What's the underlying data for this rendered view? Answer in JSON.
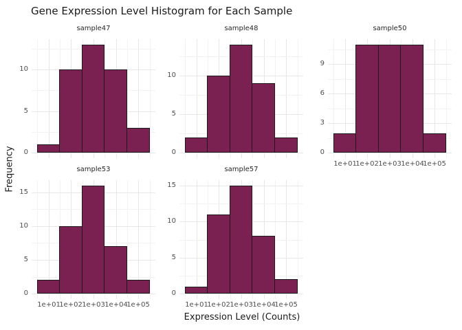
{
  "figure": {
    "title": "Gene Expression Level Histogram for Each Sample",
    "x_axis_title": "Expression Level (Counts)",
    "y_axis_title": "Frequency"
  },
  "colors": {
    "bar_fill": "#7B2151",
    "bar_edge": "#1A1A1A",
    "grid_major": "#E7E7E7",
    "grid_minor": "#F2F2F2",
    "axis_text": "#4D4D4D",
    "strip_text": "#262626",
    "background": "#FFFFFF"
  },
  "chart_data": {
    "type": "bar",
    "subtype": "faceted-histogram",
    "title": "Gene Expression Level Histogram for Each Sample",
    "xlabel": "Expression Level (Counts)",
    "ylabel": "Frequency",
    "x_scale": "log10",
    "x_tick_labels": [
      "1e+01",
      "1e+02",
      "1e+03",
      "1e+04",
      "1e+05"
    ],
    "bin_centers": [
      10,
      100,
      1000,
      10000,
      100000
    ],
    "bin_edges_log10": [
      0.5,
      1.5,
      2.5,
      3.5,
      4.5,
      5.5
    ],
    "grid": "on",
    "legend_position": "none",
    "facets": [
      {
        "label": "sample47",
        "counts": [
          1,
          10,
          13,
          10,
          3
        ],
        "y_ticks": [
          0,
          5,
          10
        ],
        "ymax": 13,
        "row": 0,
        "col": 0,
        "show_x_labels": false
      },
      {
        "label": "sample48",
        "counts": [
          2,
          10,
          14,
          9,
          2
        ],
        "y_ticks": [
          0,
          5,
          10
        ],
        "ymax": 14,
        "row": 0,
        "col": 1,
        "show_x_labels": false
      },
      {
        "label": "sample50",
        "counts": [
          2,
          11,
          11,
          11,
          2
        ],
        "y_ticks": [
          0,
          3,
          6,
          9
        ],
        "ymax": 11,
        "row": 0,
        "col": 2,
        "show_x_labels": true
      },
      {
        "label": "sample53",
        "counts": [
          2,
          10,
          16,
          7,
          2
        ],
        "y_ticks": [
          0,
          5,
          10,
          15
        ],
        "ymax": 16,
        "row": 1,
        "col": 0,
        "show_x_labels": true
      },
      {
        "label": "sample57",
        "counts": [
          1,
          11,
          15,
          8,
          2
        ],
        "y_ticks": [
          0,
          5,
          10,
          15
        ],
        "ymax": 15,
        "row": 1,
        "col": 1,
        "show_x_labels": true
      }
    ]
  }
}
